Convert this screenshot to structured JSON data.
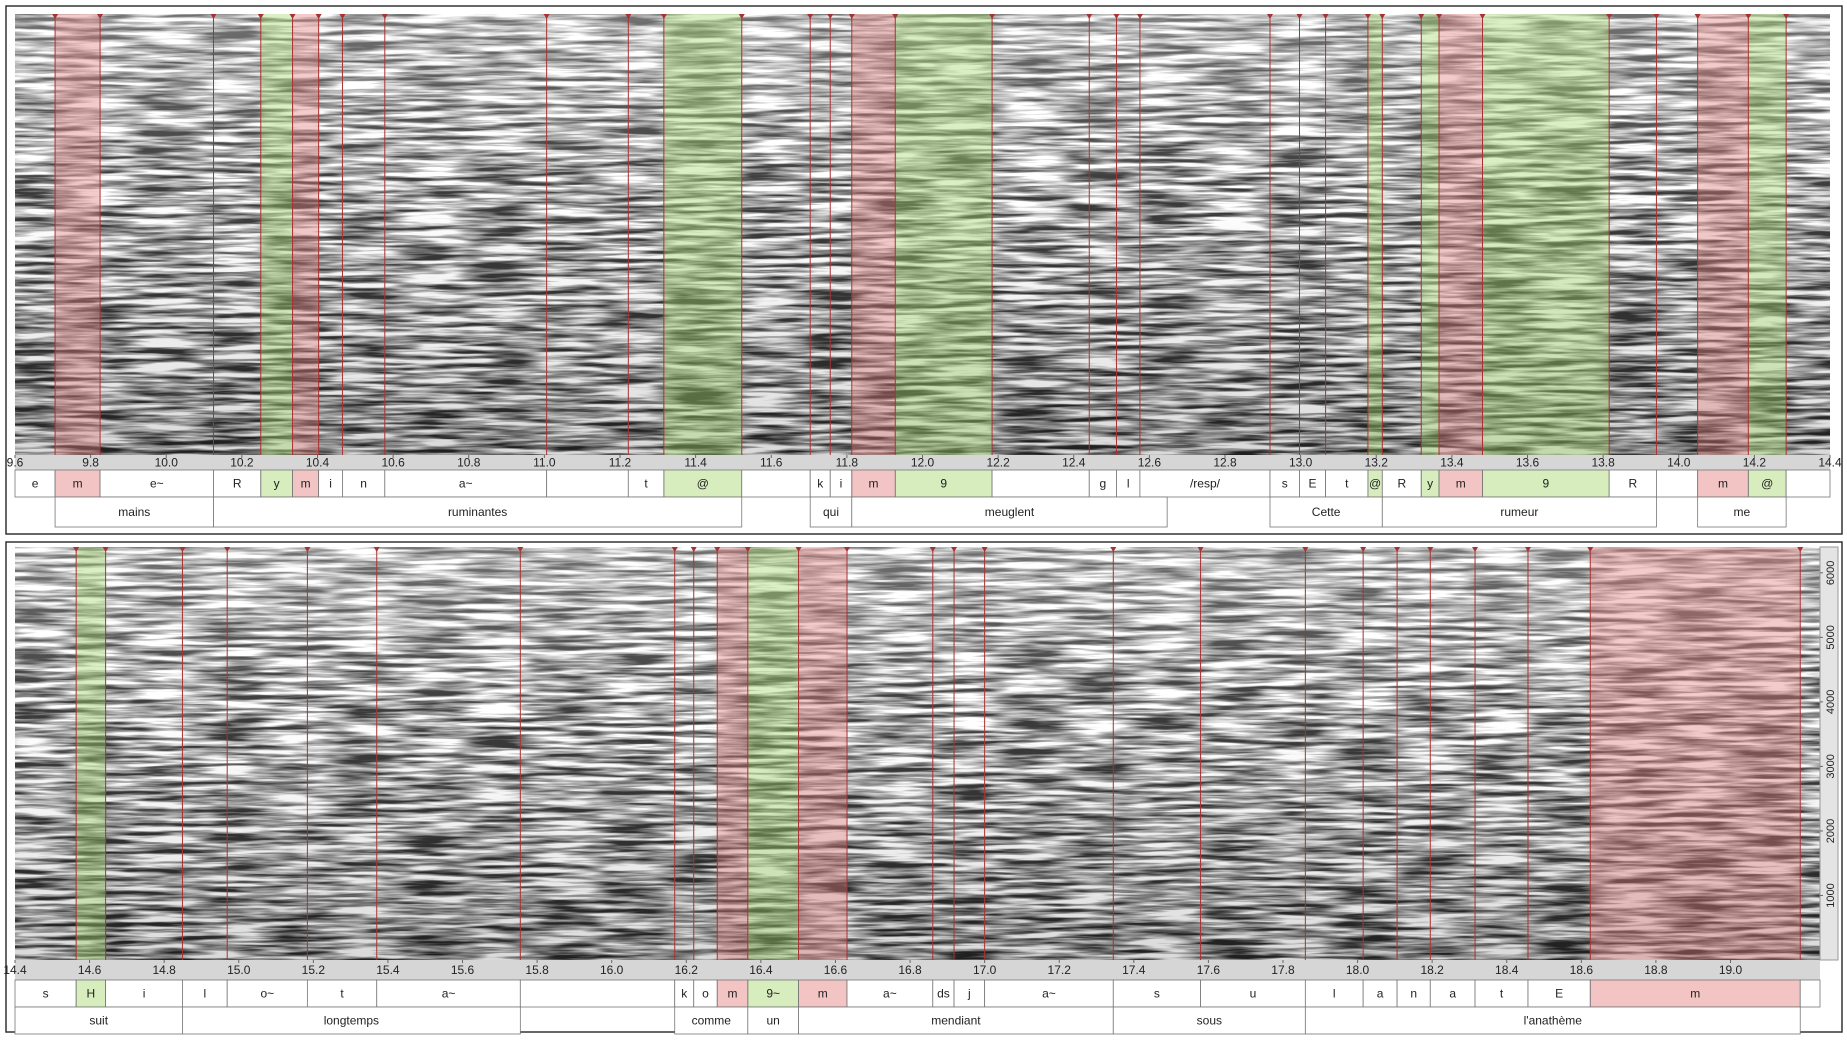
{
  "chart_data": [
    {
      "type": "spectrogram",
      "xlim": [
        9.6,
        14.4
      ],
      "xticks": [
        9.6,
        9.8,
        {
          "value": 10,
          "label": "10.0"
        },
        10.2,
        10.4,
        10.6,
        10.8,
        {
          "value": 11,
          "label": "11.0"
        },
        11.2,
        11.4,
        11.6,
        11.8,
        {
          "value": 12,
          "label": "12.0"
        },
        12.2,
        12.4,
        12.6,
        12.8,
        {
          "value": 13,
          "label": "13.0"
        },
        13.2,
        13.4,
        13.6,
        13.8,
        {
          "value": 14,
          "label": "14.0"
        },
        14.2,
        14.4
      ],
      "tiers": [
        {
          "intervals": [
            {
              "start": 9.6,
              "end": 9.706,
              "label": "e"
            },
            {
              "start": 9.706,
              "end": 9.825,
              "label": "m",
              "highlight": "#e27c7c"
            },
            {
              "start": 9.825,
              "end": 10.125,
              "label": "e~"
            },
            {
              "start": 10.125,
              "end": 10.25,
              "label": "R"
            },
            {
              "start": 10.25,
              "end": 10.334,
              "label": "y",
              "highlight": "#a6d86e"
            },
            {
              "start": 10.334,
              "end": 10.403,
              "label": "m",
              "highlight": "#e27c7c"
            },
            {
              "start": 10.403,
              "end": 10.466,
              "label": "i"
            },
            {
              "start": 10.466,
              "end": 10.578,
              "label": "n"
            },
            {
              "start": 10.578,
              "end": 11.006,
              "label": "a~"
            },
            {
              "start": 11.006,
              "end": 11.222
            },
            {
              "start": 11.222,
              "end": 11.316,
              "label": "t"
            },
            {
              "start": 11.316,
              "end": 11.522,
              "label": "@",
              "highlight": "#a6d86e"
            },
            {
              "start": 11.522,
              "end": 11.703
            },
            {
              "start": 11.703,
              "end": 11.756,
              "label": "k"
            },
            {
              "start": 11.756,
              "end": 11.813,
              "label": "i"
            },
            {
              "start": 11.813,
              "end": 11.928,
              "label": "m",
              "highlight": "#e27c7c"
            },
            {
              "start": 11.928,
              "end": 12.184,
              "label": "9",
              "highlight": "#a6d86e"
            },
            {
              "start": 12.184,
              "end": 12.441
            },
            {
              "start": 12.441,
              "end": 12.513,
              "label": "g"
            },
            {
              "start": 12.513,
              "end": 12.575,
              "label": "l"
            },
            {
              "start": 12.575,
              "end": 12.919,
              "label": "/resp/"
            },
            {
              "start": 12.919,
              "end": 12.997,
              "label": "s"
            },
            {
              "start": 12.997,
              "end": 13.066,
              "label": "E"
            },
            {
              "start": 13.066,
              "end": 13.178,
              "label": "t"
            },
            {
              "start": 13.178,
              "end": 13.216,
              "label": "@",
              "highlight": "#a6d86e"
            },
            {
              "start": 13.216,
              "end": 13.319,
              "label": "R"
            },
            {
              "start": 13.319,
              "end": 13.366,
              "label": "y",
              "highlight": "#a6d86e"
            },
            {
              "start": 13.366,
              "end": 13.481,
              "label": "m",
              "highlight": "#e27c7c"
            },
            {
              "start": 13.481,
              "end": 13.816,
              "label": "9",
              "highlight": "#a6d86e"
            },
            {
              "start": 13.816,
              "end": 13.941,
              "label": "R"
            },
            {
              "start": 13.941,
              "end": 14.05
            },
            {
              "start": 14.05,
              "end": 14.184,
              "label": "m",
              "highlight": "#e27c7c"
            },
            {
              "start": 14.184,
              "end": 14.284,
              "label": "@",
              "highlight": "#a6d86e"
            },
            {
              "start": 14.284,
              "end": 14.4
            }
          ]
        },
        {
          "intervals": [
            {
              "start": 9.6,
              "end": 9.706
            },
            {
              "start": 9.706,
              "end": 10.125,
              "label": "mains"
            },
            {
              "start": 10.125,
              "end": 11.522,
              "label": "ruminantes"
            },
            {
              "start": 11.522,
              "end": 11.703
            },
            {
              "start": 11.703,
              "end": 11.813,
              "label": "qui"
            },
            {
              "start": 11.813,
              "end": 12.647,
              "label": "meuglent"
            },
            {
              "start": 12.647,
              "end": 12.919
            },
            {
              "start": 12.919,
              "end": 13.216,
              "label": "Cette"
            },
            {
              "start": 13.216,
              "end": 13.941,
              "label": "rumeur"
            },
            {
              "start": 13.941,
              "end": 14.05
            },
            {
              "start": 14.05,
              "end": 14.284,
              "label": "me"
            },
            {
              "start": 14.284,
              "end": 14.4
            }
          ]
        }
      ]
    },
    {
      "type": "spectrogram",
      "xlim": [
        14.4,
        19.24
      ],
      "xticks": [
        14.4,
        14.6,
        14.8,
        {
          "value": 15,
          "label": "15.0"
        },
        15.2,
        15.4,
        15.6,
        15.8,
        {
          "value": 16,
          "label": "16.0"
        },
        16.2,
        16.4,
        16.6,
        16.8,
        {
          "value": 17,
          "label": "17.0"
        },
        17.2,
        17.4,
        17.6,
        17.8,
        {
          "value": 18,
          "label": "18.0"
        },
        18.2,
        18.4,
        18.6,
        18.8,
        {
          "value": 19,
          "label": "19.0"
        }
      ],
      "ylim": [
        0,
        6400
      ],
      "yticks": [
        1000,
        2000,
        3000,
        4000,
        5000,
        6000
      ],
      "tiers": [
        {
          "intervals": [
            {
              "start": 14.4,
              "end": 14.564,
              "label": "s"
            },
            {
              "start": 14.564,
              "end": 14.643,
              "label": "H",
              "highlight": "#a6d86e"
            },
            {
              "start": 14.643,
              "end": 14.849,
              "label": "i"
            },
            {
              "start": 14.849,
              "end": 14.969,
              "label": "l"
            },
            {
              "start": 14.969,
              "end": 15.184,
              "label": "o~"
            },
            {
              "start": 15.184,
              "end": 15.37,
              "label": "t"
            },
            {
              "start": 15.37,
              "end": 15.755,
              "label": "a~"
            },
            {
              "start": 15.755,
              "end": 16.169
            },
            {
              "start": 16.169,
              "end": 16.22,
              "label": "k"
            },
            {
              "start": 16.22,
              "end": 16.283,
              "label": "o"
            },
            {
              "start": 16.283,
              "end": 16.365,
              "label": "m",
              "highlight": "#e27c7c"
            },
            {
              "start": 16.365,
              "end": 16.501,
              "label": "9~",
              "highlight": "#a6d86e"
            },
            {
              "start": 16.501,
              "end": 16.631,
              "label": "m",
              "highlight": "#e27c7c"
            },
            {
              "start": 16.631,
              "end": 16.861,
              "label": "a~"
            },
            {
              "start": 16.861,
              "end": 16.918,
              "label": "ds"
            },
            {
              "start": 16.918,
              "end": 17.0,
              "label": "j"
            },
            {
              "start": 17.0,
              "end": 17.345,
              "label": "a~"
            },
            {
              "start": 17.345,
              "end": 17.579,
              "label": "s"
            },
            {
              "start": 17.579,
              "end": 17.86,
              "label": "u"
            },
            {
              "start": 17.86,
              "end": 18.015,
              "label": "l"
            },
            {
              "start": 18.015,
              "end": 18.106,
              "label": "a"
            },
            {
              "start": 18.106,
              "end": 18.195,
              "label": "n"
            },
            {
              "start": 18.195,
              "end": 18.315,
              "label": "a"
            },
            {
              "start": 18.315,
              "end": 18.457,
              "label": "t"
            },
            {
              "start": 18.457,
              "end": 18.624,
              "label": "E"
            },
            {
              "start": 18.624,
              "end": 19.187,
              "label": "m",
              "highlight": "#e27c7c"
            },
            {
              "start": 19.187,
              "end": 19.24
            }
          ]
        },
        {
          "intervals": [
            {
              "start": 14.4,
              "end": 14.849,
              "label": "suit"
            },
            {
              "start": 14.849,
              "end": 15.755,
              "label": "longtemps"
            },
            {
              "start": 15.755,
              "end": 16.169
            },
            {
              "start": 16.169,
              "end": 16.365,
              "label": "comme"
            },
            {
              "start": 16.365,
              "end": 16.501,
              "label": "un"
            },
            {
              "start": 16.501,
              "end": 17.345,
              "label": "mendiant"
            },
            {
              "start": 17.345,
              "end": 17.86,
              "label": "sous"
            },
            {
              "start": 17.86,
              "end": 19.187,
              "label": "l'anathème"
            },
            {
              "start": 19.187,
              "end": 19.24
            }
          ]
        }
      ]
    }
  ]
}
